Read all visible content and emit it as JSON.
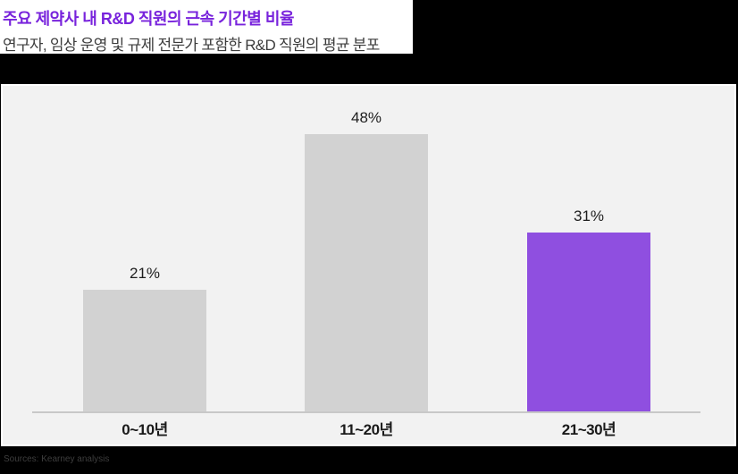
{
  "header": {
    "title": "주요 제약사 내 R&D 직원의 근속 기간별 비율",
    "subtitle": "연구자, 임상 운영 및 규제 전문가 포함한 R&D 직원의 평균 분포"
  },
  "chart_data": {
    "type": "bar",
    "title": "주요 제약사 내 R&D 직원의 근속 기간별 비율",
    "subtitle": "연구자, 임상 운영 및 규제 전문가 포함한 R&D 직원의 평균 분포",
    "categories": [
      "0~10년",
      "11~20년",
      "21~30년"
    ],
    "values": [
      21,
      48,
      31
    ],
    "value_labels": [
      "21%",
      "48%",
      "31%"
    ],
    "unit": "%",
    "ylim": [
      0,
      56
    ],
    "grid": false,
    "legend": "none",
    "bar_colors": [
      "#D2D2D2",
      "#D2D2D2",
      "#8F4FE0"
    ],
    "highlight_category": "21~30년",
    "panel_background": "#F2F2F2",
    "axis_line_color": "#C8C8C8",
    "title_color": "#7823DC"
  },
  "footer": {
    "source": "Sources: Kearney analysis"
  }
}
